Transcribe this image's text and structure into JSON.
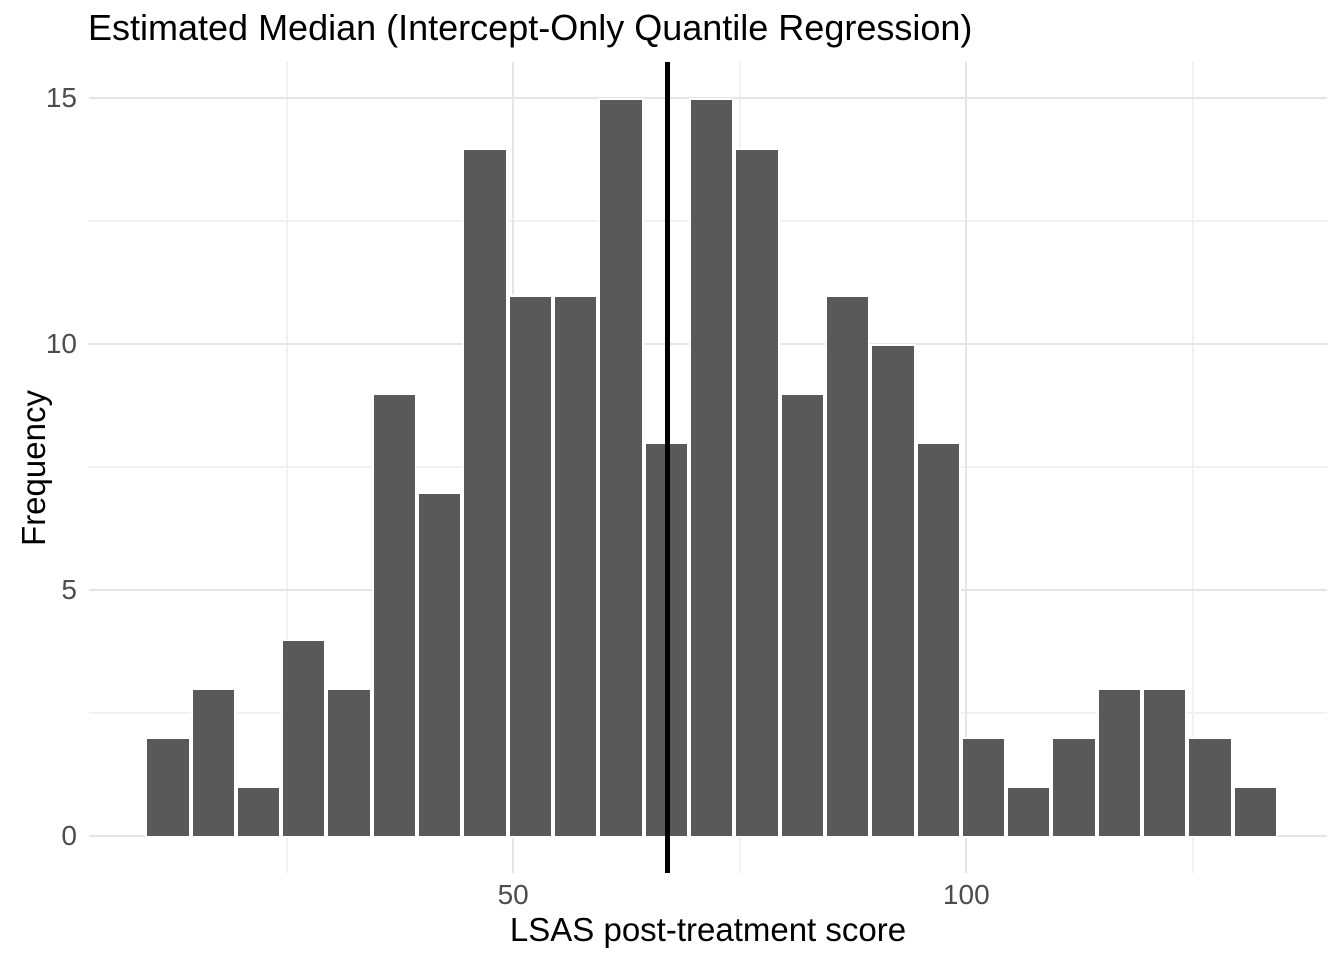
{
  "title": "Estimated Median (Intercept-Only Quantile Regression)",
  "colors": {
    "bar_fill": "#595959",
    "bar_border": "#ffffff",
    "grid_major": "#e5e5e5",
    "grid_minor": "#f1f1f1",
    "tick_label": "#4d4d4d",
    "title_text": "#000000",
    "vline": "#000000",
    "background": "#ffffff"
  },
  "chart_data": {
    "type": "bar",
    "subtype": "histogram",
    "title": "Estimated Median (Intercept-Only Quantile Regression)",
    "xlabel": "LSAS post-treatment score",
    "ylabel": "Frequency",
    "bin_start": 9.4,
    "bin_width": 5,
    "counts": [
      2,
      3,
      1,
      4,
      3,
      9,
      7,
      14,
      11,
      11,
      15,
      8,
      15,
      14,
      9,
      11,
      10,
      8,
      2,
      1,
      2,
      3,
      3,
      2,
      1
    ],
    "total_n": 169,
    "vline_x": 67,
    "vline_meaning": "estimated median",
    "x_ticks": [
      50,
      100
    ],
    "x_tick_labels": [
      "50",
      "100"
    ],
    "x_minor_gridlines": [
      25,
      75,
      125
    ],
    "y_ticks": [
      0,
      5,
      10,
      15
    ],
    "y_tick_labels": [
      "0",
      "5",
      "10",
      "15"
    ],
    "y_minor_gridlines": [
      2.5,
      7.5,
      12.5
    ],
    "xlim": [
      3.2,
      139.8
    ],
    "ylim": [
      -0.76,
      15.74
    ],
    "grid": true,
    "legend": false
  }
}
